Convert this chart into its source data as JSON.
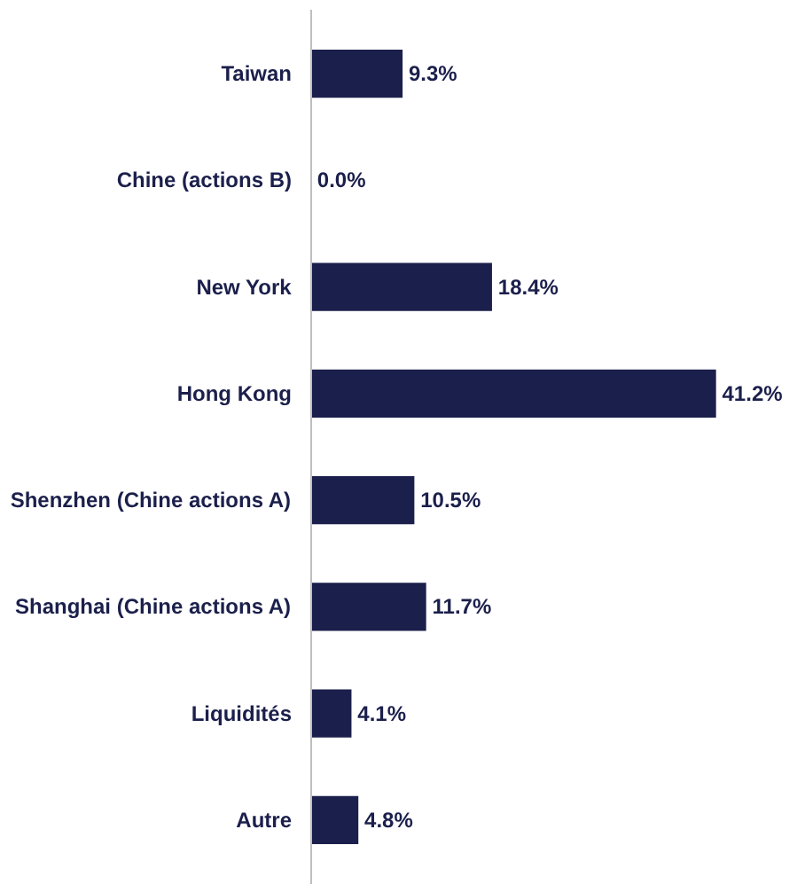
{
  "chart_data": {
    "type": "bar",
    "orientation": "horizontal",
    "categories": [
      "Taiwan",
      "Chine (actions B)",
      "New York",
      "Hong Kong",
      "Shenzhen (Chine actions A)",
      "Shanghai (Chine actions A)",
      "Liquidités",
      "Autre"
    ],
    "values": [
      9.3,
      0.0,
      18.4,
      41.2,
      10.5,
      11.7,
      4.1,
      4.8
    ],
    "value_labels": [
      "9.3%",
      "0.0%",
      "18.4%",
      "41.2%",
      "10.5%",
      "11.7%",
      "4.1%",
      "4.8%"
    ],
    "color": "#1b1f4b"
  }
}
